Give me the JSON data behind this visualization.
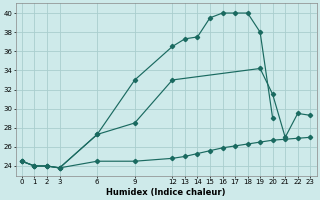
{
  "xlabel": "Humidex (Indice chaleur)",
  "bg_color": "#ceeaea",
  "grid_color": "#aacece",
  "line_color": "#1a6a60",
  "xlim": [
    -0.5,
    23.5
  ],
  "ylim": [
    23.0,
    41.0
  ],
  "xticks": [
    0,
    1,
    2,
    3,
    6,
    9,
    12,
    13,
    14,
    15,
    16,
    17,
    18,
    19,
    20,
    21,
    22,
    23
  ],
  "yticks": [
    24,
    26,
    28,
    30,
    32,
    34,
    36,
    38,
    40
  ],
  "series1_x": [
    0,
    1,
    2,
    3,
    6,
    9,
    12,
    13,
    14,
    15,
    16,
    17,
    18,
    19,
    20,
    21,
    22,
    23
  ],
  "series1_y": [
    24.5,
    24.0,
    24.0,
    23.8,
    24.5,
    24.5,
    24.8,
    25.0,
    25.3,
    25.6,
    25.9,
    26.1,
    26.3,
    26.5,
    26.7,
    26.8,
    26.9,
    27.0
  ],
  "series2_x": [
    0,
    1,
    2,
    3,
    6,
    9,
    12,
    13,
    14,
    15,
    16,
    17,
    18,
    19,
    20,
    21,
    22,
    23
  ],
  "series2_y": [
    24.5,
    24.0,
    24.0,
    23.8,
    27.3,
    33.0,
    36.5,
    37.3,
    37.5,
    39.5,
    40.0,
    40.0,
    40.0,
    38.0,
    29.0,
    null,
    null,
    null
  ],
  "series3_x": [
    0,
    1,
    2,
    3,
    6,
    9,
    12,
    19,
    20,
    21,
    22,
    23
  ],
  "series3_y": [
    24.5,
    24.0,
    24.0,
    23.8,
    27.3,
    28.5,
    33.0,
    34.2,
    31.5,
    27.0,
    29.5,
    29.3
  ]
}
